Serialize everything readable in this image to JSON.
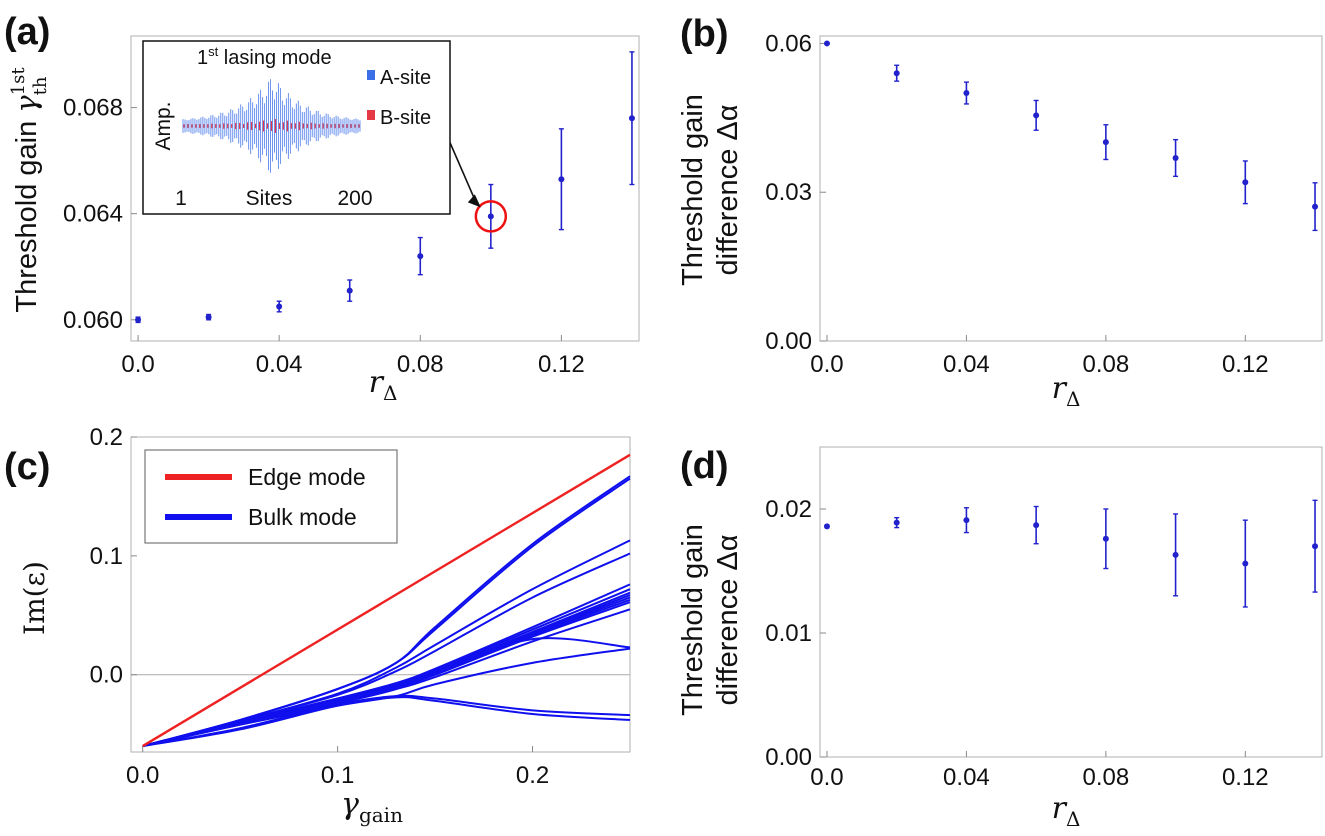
{
  "panel_labels": [
    "(a)",
    "(b)",
    "(c)",
    "(d)"
  ],
  "colors": {
    "points": "#2222cc",
    "edge": "#ee2222",
    "bulk": "#1010ee",
    "inset_a": "#3b6fe8",
    "inset_b": "#e63946",
    "frame": "#b0b0b0"
  },
  "chart_data": [
    {
      "panel": "(a)",
      "type": "scatter",
      "xlabel": "r_Δ",
      "ylabel": "Threshold gain γ_th^1st",
      "ylabel_parts": {
        "text": "Threshold gain ",
        "var": "γ",
        "sub": "th",
        "sup": "1st"
      },
      "xlim": [
        -0.002,
        0.142
      ],
      "ylim": [
        0.0592,
        0.0707
      ],
      "xticks": [
        "0.0",
        "0.04",
        "0.08",
        "0.12"
      ],
      "xtick_values": [
        0,
        0.04,
        0.08,
        0.12
      ],
      "yticks": [
        "0.060",
        "0.064",
        "0.068"
      ],
      "ytick_values": [
        0.06,
        0.064,
        0.068
      ],
      "x": [
        0,
        0.02,
        0.04,
        0.06,
        0.08,
        0.1,
        0.12,
        0.14
      ],
      "y": [
        0.06,
        0.0601,
        0.0605,
        0.0611,
        0.0624,
        0.0639,
        0.0653,
        0.0676
      ],
      "err": [
        0.0001,
        0.0001,
        0.0002,
        0.0004,
        0.0007,
        0.0012,
        0.0019,
        0.0025
      ],
      "highlight_index": 5,
      "inset": {
        "title": "1st lasing mode",
        "title_parts": {
          "base": "1",
          "sup": "st",
          "rest": " lasing mode"
        },
        "xlabel": "Sites",
        "ylabel": "Amp.",
        "xtick_left": "1",
        "xtick_right": "200",
        "legend": [
          "A-site",
          "B-site"
        ]
      }
    },
    {
      "panel": "(b)",
      "type": "scatter",
      "xlabel": "r_Δ",
      "ylabel_line1": "Threshold gain",
      "ylabel_line2": "difference Δα",
      "xlim": [
        -0.002,
        0.142
      ],
      "ylim": [
        0,
        0.0615
      ],
      "xticks": [
        "0.0",
        "0.04",
        "0.08",
        "0.12"
      ],
      "xtick_values": [
        0,
        0.04,
        0.08,
        0.12
      ],
      "yticks": [
        "0.00",
        "0.03",
        "0.06"
      ],
      "ytick_values": [
        0,
        0.03,
        0.06
      ],
      "x": [
        0,
        0.02,
        0.04,
        0.06,
        0.08,
        0.1,
        0.12,
        0.14
      ],
      "y": [
        0.06,
        0.054,
        0.05,
        0.0455,
        0.0401,
        0.0369,
        0.032,
        0.0271
      ],
      "err": [
        0.0002,
        0.0016,
        0.0022,
        0.003,
        0.0035,
        0.0037,
        0.0043,
        0.0048
      ]
    },
    {
      "panel": "(c)",
      "type": "line",
      "xlabel": "γ_gain",
      "ylabel": "Im(ε)",
      "xlim": [
        -0.006,
        0.25
      ],
      "ylim": [
        -0.065,
        0.2
      ],
      "xticks": [
        "0.0",
        "0.1",
        "0.2"
      ],
      "xtick_values": [
        0,
        0.1,
        0.2
      ],
      "yticks": [
        "0.0",
        "0.1",
        "0.2"
      ],
      "ytick_values": [
        0,
        0.1,
        0.2
      ],
      "legend": [
        "Edge mode",
        "Bulk mode"
      ],
      "edge": {
        "x": [
          0,
          0.25
        ],
        "y": [
          -0.06,
          0.185
        ]
      },
      "bulk": {
        "x": [
          0,
          0.05,
          0.1,
          0.13,
          0.15,
          0.2,
          0.25
        ],
        "series": [
          [
            -0.06,
            -0.038,
            -0.012,
            0.01,
            0.04,
            0.11,
            0.167
          ],
          [
            -0.06,
            -0.038,
            -0.012,
            0.01,
            0.038,
            0.108,
            0.165
          ],
          [
            -0.06,
            -0.039,
            -0.016,
            0.006,
            0.025,
            0.072,
            0.113
          ],
          [
            -0.06,
            -0.039,
            -0.017,
            0.003,
            0.02,
            0.065,
            0.102
          ],
          [
            -0.06,
            -0.04,
            -0.02,
            -0.007,
            0.005,
            0.04,
            0.076
          ],
          [
            -0.06,
            -0.04,
            -0.02,
            -0.008,
            0.004,
            0.038,
            0.072
          ],
          [
            -0.06,
            -0.04,
            -0.021,
            -0.009,
            0.003,
            0.036,
            0.069
          ],
          [
            -0.06,
            -0.04,
            -0.021,
            -0.009,
            0.002,
            0.035,
            0.067
          ],
          [
            -0.06,
            -0.04,
            -0.021,
            -0.01,
            0.001,
            0.034,
            0.065
          ],
          [
            -0.06,
            -0.041,
            -0.022,
            -0.01,
            0.0,
            0.033,
            0.063
          ],
          [
            -0.06,
            -0.041,
            -0.022,
            -0.011,
            0.0,
            0.032,
            0.061
          ],
          [
            -0.06,
            -0.041,
            -0.023,
            -0.012,
            -0.002,
            0.028,
            0.055
          ],
          [
            -0.06,
            -0.042,
            -0.024,
            -0.012,
            0.002,
            0.03,
            0.023
          ],
          [
            -0.06,
            -0.042,
            -0.026,
            -0.018,
            -0.008,
            0.01,
            0.022
          ],
          [
            -0.06,
            -0.045,
            -0.025,
            -0.018,
            -0.02,
            -0.03,
            -0.034
          ],
          [
            -0.06,
            -0.046,
            -0.026,
            -0.019,
            -0.022,
            -0.033,
            -0.038
          ]
        ]
      }
    },
    {
      "panel": "(d)",
      "type": "scatter",
      "xlabel": "r_Δ",
      "ylabel_line1": "Threshold gain",
      "ylabel_line2": "difference Δα",
      "xlim": [
        -0.002,
        0.142
      ],
      "ylim": [
        0,
        0.025
      ],
      "xticks": [
        "0.0",
        "0.04",
        "0.08",
        "0.12"
      ],
      "xtick_values": [
        0,
        0.04,
        0.08,
        0.12
      ],
      "yticks": [
        "0.00",
        "0.01",
        "0.02"
      ],
      "ytick_values": [
        0,
        0.01,
        0.02
      ],
      "x": [
        0,
        0.02,
        0.04,
        0.06,
        0.08,
        0.1,
        0.12,
        0.14
      ],
      "y": [
        0.0186,
        0.0189,
        0.0191,
        0.0187,
        0.0176,
        0.0163,
        0.0156,
        0.017
      ],
      "err": [
        0.0001,
        0.0004,
        0.001,
        0.0015,
        0.0024,
        0.0033,
        0.0035,
        0.0037
      ]
    }
  ]
}
